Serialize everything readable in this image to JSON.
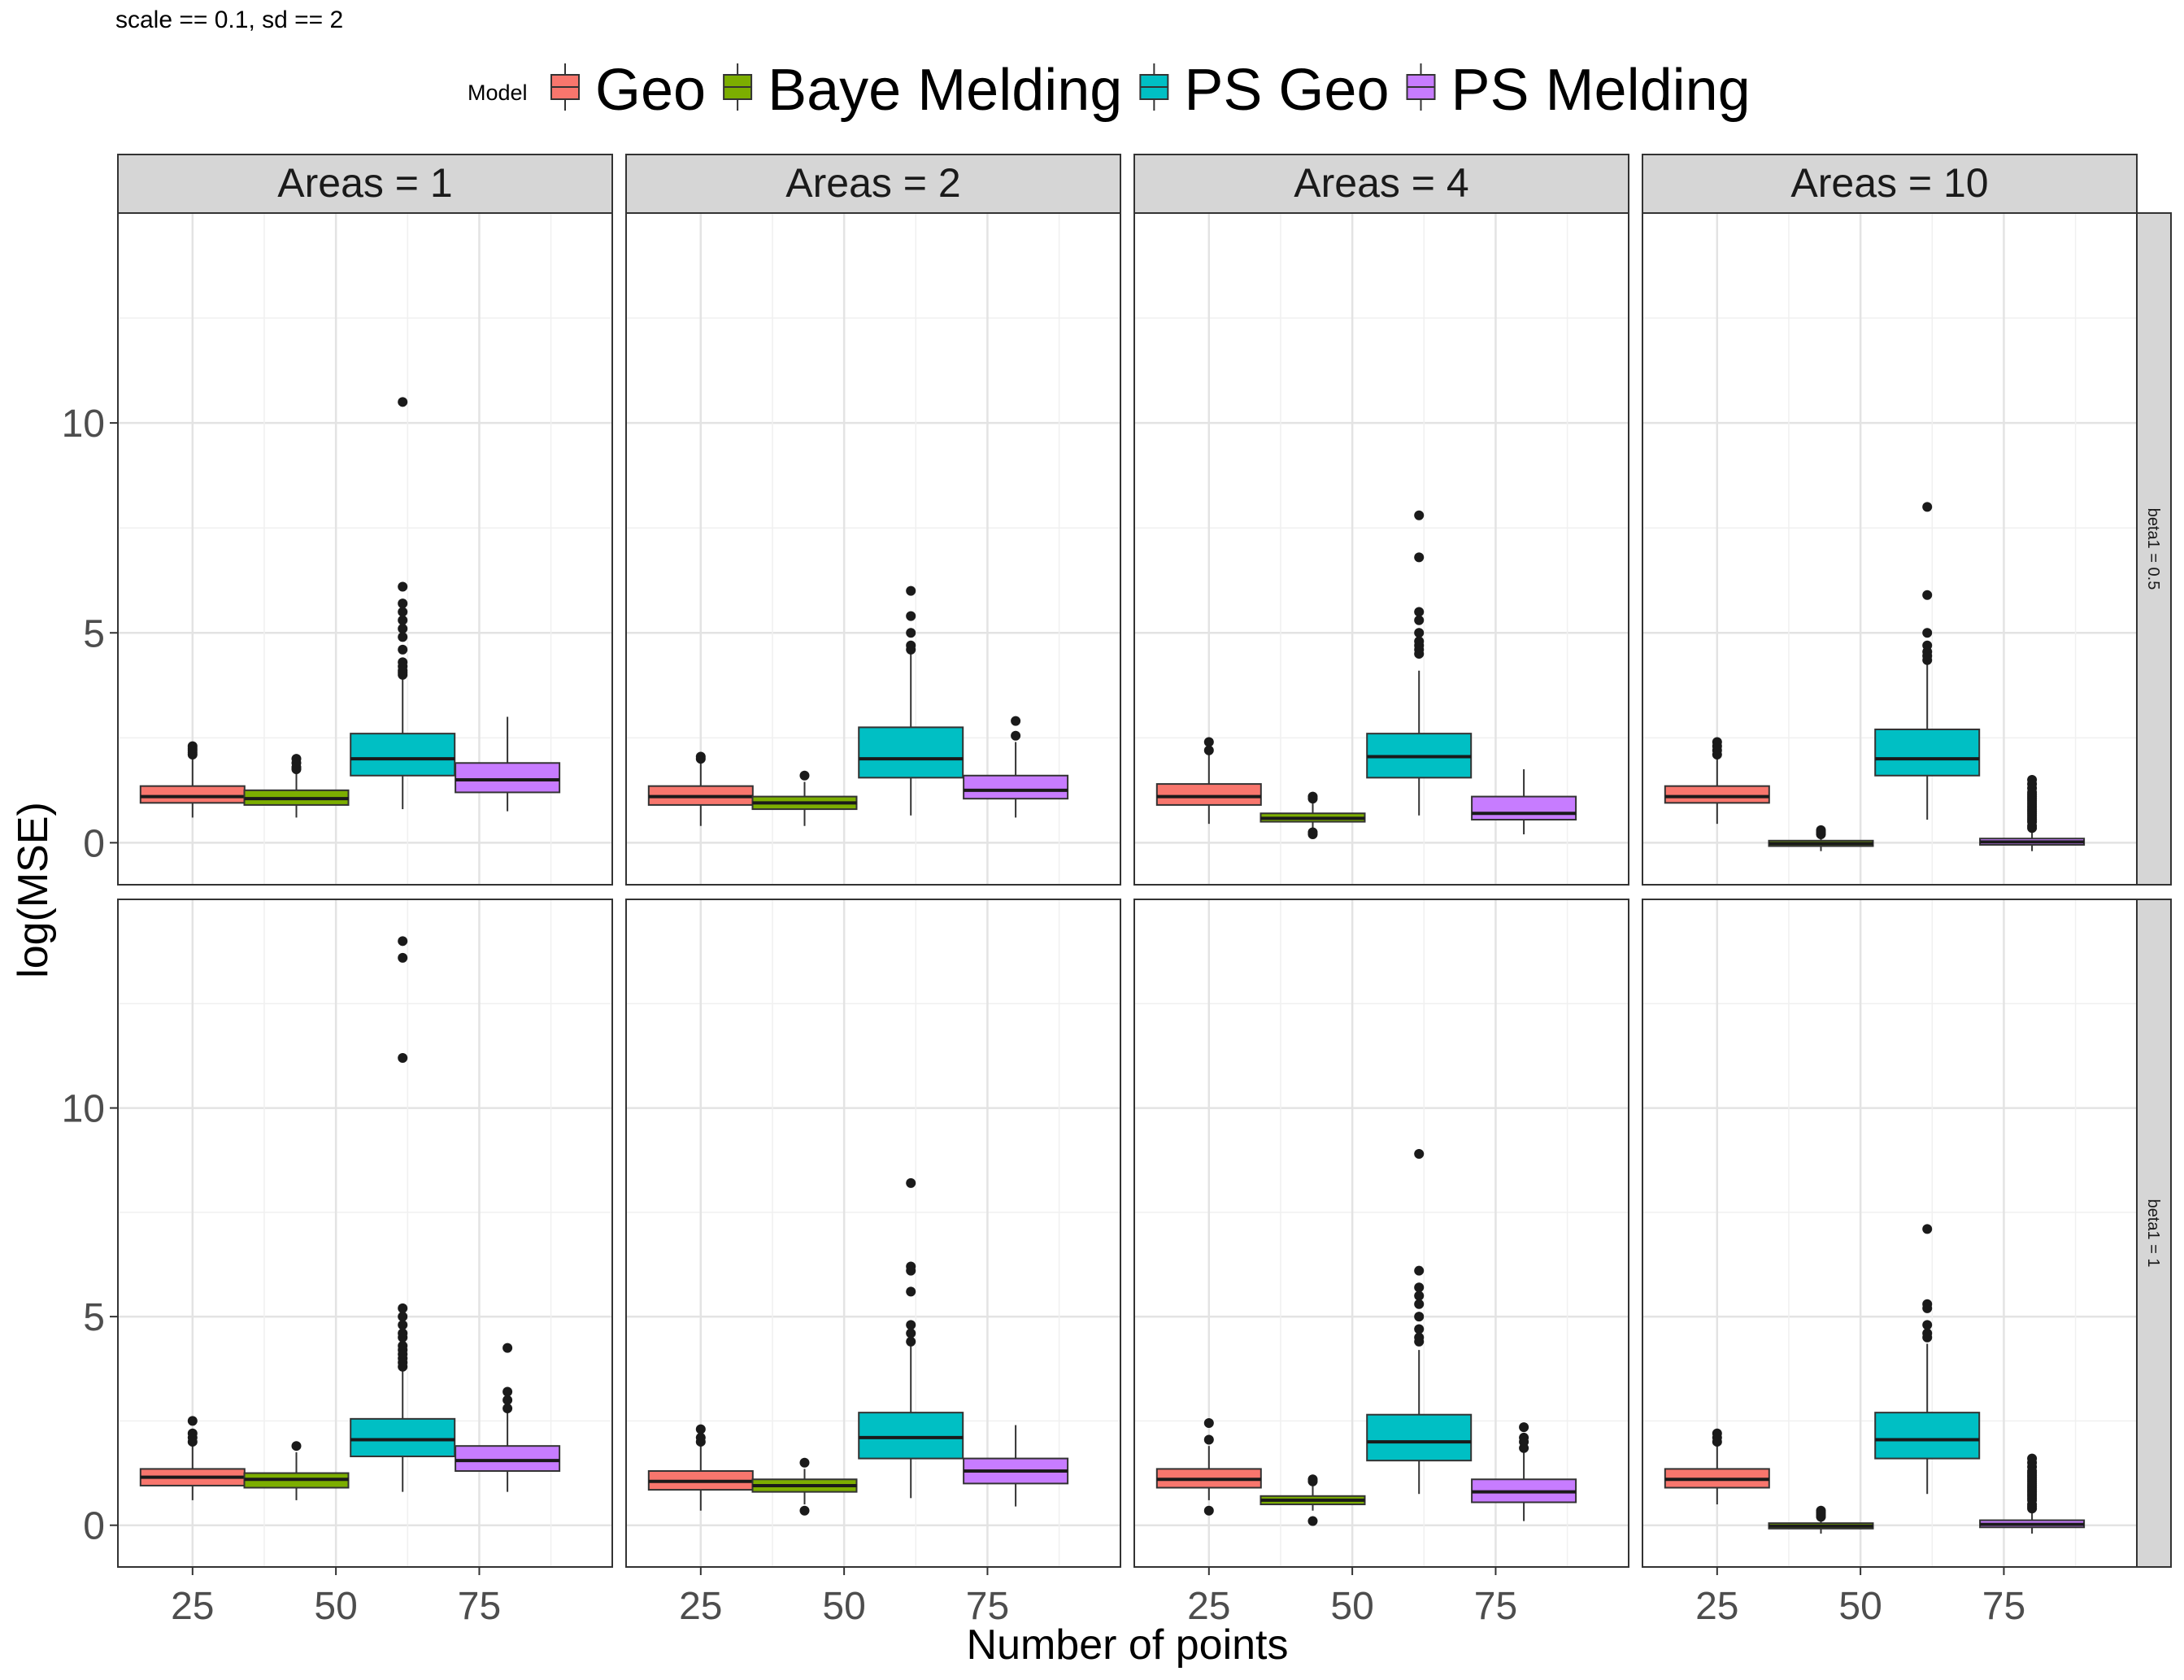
{
  "subtitle": "scale == 0.1, sd  == 2",
  "chart_data": {
    "type": "box",
    "subtitle": "scale == 0.1, sd  == 2",
    "xlabel": "Number of points",
    "ylabel": "log(MSE)",
    "x_ticks": [
      25,
      50,
      75
    ],
    "y_ticks": [
      0,
      5,
      10
    ],
    "ylim": [
      -1,
      15
    ],
    "grid": true,
    "legend": {
      "title": "Model",
      "position": "top",
      "entries": [
        {
          "name": "Geo",
          "color": "#F8766D"
        },
        {
          "name": "Baye Melding",
          "color": "#7CAE00"
        },
        {
          "name": "PS Geo",
          "color": "#00BFC4"
        },
        {
          "name": "PS Melding",
          "color": "#C77CFF"
        }
      ]
    },
    "col_facets": [
      "Areas = 1",
      "Areas = 2",
      "Areas = 4",
      "Areas = 10"
    ],
    "row_facets": [
      "beta1 = 0.5",
      "beta1 = 1"
    ],
    "panels": [
      {
        "row": 0,
        "col": 0,
        "boxes": [
          {
            "model": "Geo",
            "whisker_low": 0.6,
            "q1": 0.95,
            "median": 1.1,
            "q3": 1.35,
            "whisker_high": 2.0,
            "outliers": [
              2.1,
              2.15,
              2.2,
              2.25,
              2.3
            ]
          },
          {
            "model": "Baye Melding",
            "whisker_low": 0.6,
            "q1": 0.9,
            "median": 1.05,
            "q3": 1.25,
            "whisker_high": 1.65,
            "outliers": [
              1.75,
              1.8,
              1.9,
              2.0
            ]
          },
          {
            "model": "PS Geo",
            "whisker_low": 0.8,
            "q1": 1.6,
            "median": 2.0,
            "q3": 2.6,
            "whisker_high": 3.9,
            "outliers": [
              4.0,
              4.05,
              4.1,
              4.2,
              4.3,
              4.6,
              4.9,
              5.1,
              5.3,
              5.5,
              5.7,
              6.1,
              10.5
            ]
          },
          {
            "model": "PS Melding",
            "whisker_low": 0.75,
            "q1": 1.2,
            "median": 1.5,
            "q3": 1.9,
            "whisker_high": 3.0,
            "outliers": []
          }
        ]
      },
      {
        "row": 0,
        "col": 1,
        "boxes": [
          {
            "model": "Geo",
            "whisker_low": 0.4,
            "q1": 0.9,
            "median": 1.1,
            "q3": 1.35,
            "whisker_high": 1.95,
            "outliers": [
              2.0,
              2.05
            ]
          },
          {
            "model": "Baye Melding",
            "whisker_low": 0.4,
            "q1": 0.8,
            "median": 0.95,
            "q3": 1.1,
            "whisker_high": 1.45,
            "outliers": [
              1.6
            ]
          },
          {
            "model": "PS Geo",
            "whisker_low": 0.65,
            "q1": 1.55,
            "median": 2.0,
            "q3": 2.75,
            "whisker_high": 4.5,
            "outliers": [
              4.6,
              4.7,
              5.0,
              5.4,
              6.0
            ]
          },
          {
            "model": "PS Melding",
            "whisker_low": 0.6,
            "q1": 1.05,
            "median": 1.25,
            "q3": 1.6,
            "whisker_high": 2.4,
            "outliers": [
              2.55,
              2.9
            ]
          }
        ]
      },
      {
        "row": 0,
        "col": 2,
        "boxes": [
          {
            "model": "Geo",
            "whisker_low": 0.45,
            "q1": 0.9,
            "median": 1.1,
            "q3": 1.4,
            "whisker_high": 2.1,
            "outliers": [
              2.2,
              2.4
            ]
          },
          {
            "model": "Baye Melding",
            "whisker_low": 0.3,
            "q1": 0.5,
            "median": 0.58,
            "q3": 0.7,
            "whisker_high": 0.95,
            "outliers": [
              0.2,
              0.25,
              1.05,
              1.1
            ]
          },
          {
            "model": "PS Geo",
            "whisker_low": 0.65,
            "q1": 1.55,
            "median": 2.05,
            "q3": 2.6,
            "whisker_high": 4.1,
            "outliers": [
              4.5,
              4.6,
              4.7,
              4.8,
              5.0,
              5.3,
              5.5,
              6.8,
              7.8
            ]
          },
          {
            "model": "PS Melding",
            "whisker_low": 0.2,
            "q1": 0.55,
            "median": 0.7,
            "q3": 1.1,
            "whisker_high": 1.75,
            "outliers": []
          }
        ]
      },
      {
        "row": 0,
        "col": 3,
        "boxes": [
          {
            "model": "Geo",
            "whisker_low": 0.45,
            "q1": 0.95,
            "median": 1.1,
            "q3": 1.35,
            "whisker_high": 2.0,
            "outliers": [
              2.1,
              2.2,
              2.3,
              2.4
            ]
          },
          {
            "model": "Baye Melding",
            "whisker_low": -0.2,
            "q1": -0.08,
            "median": -0.02,
            "q3": 0.05,
            "whisker_high": 0.15,
            "outliers": [
              0.2,
              0.25,
              0.3
            ]
          },
          {
            "model": "PS Geo",
            "whisker_low": 0.55,
            "q1": 1.6,
            "median": 2.0,
            "q3": 2.7,
            "whisker_high": 4.25,
            "outliers": [
              4.35,
              4.45,
              4.55,
              4.7,
              5.0,
              5.9,
              8.0
            ]
          },
          {
            "model": "PS Melding",
            "whisker_low": -0.2,
            "q1": -0.05,
            "median": 0.02,
            "q3": 0.1,
            "whisker_high": 0.25,
            "outliers": [
              0.35,
              0.4,
              0.5,
              0.55,
              0.6,
              0.65,
              0.7,
              0.75,
              0.8,
              0.85,
              0.9,
              0.95,
              1.0,
              1.05,
              1.1,
              1.15,
              1.2,
              1.3,
              1.4,
              1.5
            ]
          }
        ]
      },
      {
        "row": 1,
        "col": 0,
        "boxes": [
          {
            "model": "Geo",
            "whisker_low": 0.6,
            "q1": 0.95,
            "median": 1.15,
            "q3": 1.35,
            "whisker_high": 1.9,
            "outliers": [
              2.0,
              2.1,
              2.2,
              2.5
            ]
          },
          {
            "model": "Baye Melding",
            "whisker_low": 0.6,
            "q1": 0.9,
            "median": 1.1,
            "q3": 1.25,
            "whisker_high": 1.75,
            "outliers": [
              1.9
            ]
          },
          {
            "model": "PS Geo",
            "whisker_low": 0.8,
            "q1": 1.65,
            "median": 2.05,
            "q3": 2.55,
            "whisker_high": 3.7,
            "outliers": [
              3.8,
              3.9,
              4.0,
              4.1,
              4.2,
              4.3,
              4.5,
              4.6,
              4.8,
              5.0,
              5.2,
              11.2,
              13.6,
              14.0
            ]
          },
          {
            "model": "PS Melding",
            "whisker_low": 0.8,
            "q1": 1.3,
            "median": 1.55,
            "q3": 1.9,
            "whisker_high": 2.7,
            "outliers": [
              2.8,
              3.0,
              3.2,
              4.25
            ]
          }
        ]
      },
      {
        "row": 1,
        "col": 1,
        "boxes": [
          {
            "model": "Geo",
            "whisker_low": 0.35,
            "q1": 0.85,
            "median": 1.05,
            "q3": 1.3,
            "whisker_high": 1.9,
            "outliers": [
              2.0,
              2.1,
              2.3
            ]
          },
          {
            "model": "Baye Melding",
            "whisker_low": 0.5,
            "q1": 0.8,
            "median": 0.95,
            "q3": 1.1,
            "whisker_high": 1.35,
            "outliers": [
              0.35,
              1.5
            ]
          },
          {
            "model": "PS Geo",
            "whisker_low": 0.65,
            "q1": 1.6,
            "median": 2.1,
            "q3": 2.7,
            "whisker_high": 4.3,
            "outliers": [
              4.4,
              4.6,
              4.8,
              5.6,
              6.1,
              6.2,
              8.2
            ]
          },
          {
            "model": "PS Melding",
            "whisker_low": 0.45,
            "q1": 1.0,
            "median": 1.3,
            "q3": 1.6,
            "whisker_high": 2.4,
            "outliers": []
          }
        ]
      },
      {
        "row": 1,
        "col": 2,
        "boxes": [
          {
            "model": "Geo",
            "whisker_low": 0.6,
            "q1": 0.9,
            "median": 1.1,
            "q3": 1.35,
            "whisker_high": 1.9,
            "outliers": [
              0.35,
              2.05,
              2.45
            ]
          },
          {
            "model": "Baye Melding",
            "whisker_low": 0.35,
            "q1": 0.5,
            "median": 0.6,
            "q3": 0.7,
            "whisker_high": 0.95,
            "outliers": [
              0.1,
              1.05,
              1.1
            ]
          },
          {
            "model": "PS Geo",
            "whisker_low": 0.75,
            "q1": 1.55,
            "median": 2.0,
            "q3": 2.65,
            "whisker_high": 4.2,
            "outliers": [
              4.4,
              4.5,
              4.7,
              5.0,
              5.3,
              5.5,
              5.7,
              6.1,
              8.9
            ]
          },
          {
            "model": "PS Melding",
            "whisker_low": 0.1,
            "q1": 0.55,
            "median": 0.8,
            "q3": 1.1,
            "whisker_high": 1.75,
            "outliers": [
              1.85,
              2.0,
              2.1,
              2.35
            ]
          }
        ]
      },
      {
        "row": 1,
        "col": 3,
        "boxes": [
          {
            "model": "Geo",
            "whisker_low": 0.5,
            "q1": 0.9,
            "median": 1.1,
            "q3": 1.35,
            "whisker_high": 1.9,
            "outliers": [
              2.0,
              2.1,
              2.2
            ]
          },
          {
            "model": "Baye Melding",
            "whisker_low": -0.2,
            "q1": -0.08,
            "median": -0.02,
            "q3": 0.05,
            "whisker_high": 0.15,
            "outliers": [
              0.2,
              0.25,
              0.3,
              0.35
            ]
          },
          {
            "model": "PS Geo",
            "whisker_low": 0.75,
            "q1": 1.6,
            "median": 2.05,
            "q3": 2.7,
            "whisker_high": 4.35,
            "outliers": [
              4.5,
              4.6,
              4.8,
              5.2,
              5.3,
              7.1
            ]
          },
          {
            "model": "PS Melding",
            "whisker_low": -0.2,
            "q1": -0.05,
            "median": 0.02,
            "q3": 0.12,
            "whisker_high": 0.3,
            "outliers": [
              0.4,
              0.45,
              0.5,
              0.6,
              0.65,
              0.7,
              0.75,
              0.8,
              0.85,
              0.9,
              0.95,
              1.0,
              1.05,
              1.1,
              1.15,
              1.2,
              1.25,
              1.3,
              1.4,
              1.5,
              1.6
            ]
          }
        ]
      }
    ]
  }
}
